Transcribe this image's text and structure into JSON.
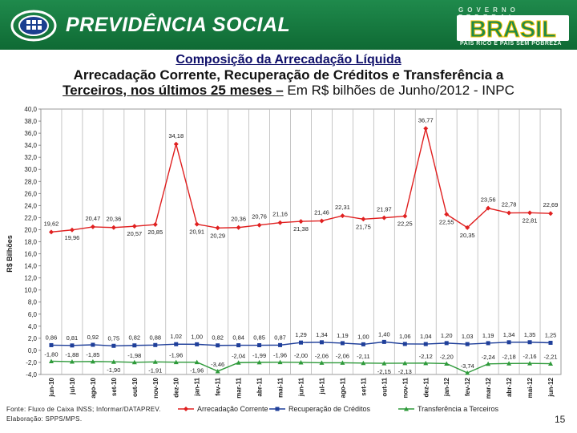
{
  "header": {
    "brand_title": "PREVIDÊNCIA SOCIAL",
    "gov_label": "GOVERNO FEDERAL",
    "country": "BRASIL",
    "slogan": "PAÍS RICO É PAÍS SEM POBREZA",
    "colors": {
      "green": "#1f8a4c",
      "yellow": "#f5c400",
      "blue": "#1a3f8f"
    }
  },
  "title": {
    "line1": "Composição da Arrecadação Líquida",
    "line2": "Arrecadação Corrente, Recuperação de Créditos e Transferência a",
    "line3_bold": "Terceiros, nos últimos 25 meses –",
    "line3_rest": " Em R$ bilhões de Junho/2012 - INPC"
  },
  "chart_data": {
    "type": "line",
    "ylabel": "R$ Bilhões",
    "xlabel": "",
    "ylim": [
      -4.0,
      40.0
    ],
    "yticks": [
      "40,0",
      "38,0",
      "36,0",
      "34,0",
      "32,0",
      "30,0",
      "28,0",
      "26,0",
      "24,0",
      "22,0",
      "20,0",
      "18,0",
      "16,0",
      "14,0",
      "12,0",
      "10,0",
      "8,0",
      "6,0",
      "4,0",
      "2,0",
      "0,0",
      "-2,0",
      "-4,0"
    ],
    "ytick_values": [
      40,
      38,
      36,
      34,
      32,
      30,
      28,
      26,
      24,
      22,
      20,
      18,
      16,
      14,
      12,
      10,
      8,
      6,
      4,
      2,
      0,
      -2,
      -4
    ],
    "categories": [
      "jun-10",
      "jul-10",
      "ago-10",
      "set-10",
      "out-10",
      "nov-10",
      "dez-10",
      "jan-11",
      "fev-11",
      "mar-11",
      "abr-11",
      "mai-11",
      "jun-11",
      "jul-11",
      "ago-11",
      "set-11",
      "out-11",
      "nov-11",
      "dez-11",
      "jan-12",
      "fev-12",
      "mar-12",
      "abr-12",
      "mai-12",
      "jun-12"
    ],
    "series": [
      {
        "name": "Arrecadação Corrente",
        "color": "#e02020",
        "marker": "diamond",
        "values": [
          19.62,
          19.96,
          20.47,
          20.36,
          20.57,
          20.85,
          34.18,
          20.91,
          20.29,
          20.36,
          20.76,
          21.16,
          21.38,
          21.46,
          22.31,
          21.75,
          21.97,
          22.25,
          36.77,
          22.55,
          20.35,
          23.56,
          22.78,
          22.81,
          22.69
        ],
        "labels": [
          "19,62",
          "19,96",
          "20,47",
          "20,36",
          "20,57",
          "20,85",
          "34,18",
          "20,91",
          "20,29",
          "20,36",
          "20,76",
          "21,16",
          "21,38",
          "21,46",
          "22,31",
          "21,75",
          "21,97",
          "22,25",
          "36,77",
          "22,55",
          "20,35",
          "23,56",
          "22,78",
          "22,81",
          "22,69"
        ]
      },
      {
        "name": "Recuperação de Créditos",
        "color": "#1f3f9a",
        "marker": "square",
        "values": [
          0.86,
          0.81,
          0.92,
          0.75,
          0.82,
          0.88,
          1.02,
          1.0,
          0.82,
          0.84,
          0.85,
          0.87,
          1.29,
          1.34,
          1.19,
          1.0,
          1.4,
          1.06,
          1.04,
          1.2,
          1.03,
          1.19,
          1.34,
          1.35,
          1.25
        ],
        "labels": [
          "0,86",
          "0,81",
          "0,92",
          "0,75",
          "0,82",
          "0,88",
          "1,02",
          "1,00",
          "0,82",
          "0,84",
          "0,85",
          "0,87",
          "1,29",
          "1,34",
          "1,19",
          "1,00",
          "1,40",
          "1,06",
          "1,04",
          "1,20",
          "1,03",
          "1,19",
          "1,34",
          "1,35",
          "1,25"
        ]
      },
      {
        "name": "Transferência a Terceiros",
        "color": "#2e9a3a",
        "marker": "triangle",
        "values": [
          -1.8,
          -1.88,
          -1.85,
          -1.9,
          -1.98,
          -1.91,
          -1.96,
          -1.96,
          -3.46,
          -2.04,
          -1.99,
          -1.96,
          -2.0,
          -2.06,
          -2.06,
          -2.11,
          -2.15,
          -2.13,
          -2.12,
          -2.2,
          -3.74,
          -2.24,
          -2.18,
          -2.16,
          -2.21
        ],
        "labels": [
          "-1,80",
          "-1,88",
          "-1,85",
          "-1,90",
          "-1,98",
          "-1,91",
          "-1,96",
          "-1,96",
          "-3,46",
          "-2,04",
          "-1,99",
          "-1,96",
          "-2,00",
          "-2,06",
          "-2,06",
          "-2,11",
          "-2,15",
          "-2,13",
          "-2,12",
          "-2,20",
          "-3,74",
          "-2,24",
          "-2,18",
          "-2,16",
          "-2,21"
        ]
      }
    ],
    "legend_position": "bottom-center",
    "grid": true
  },
  "footer": {
    "source": "Fonte: Fluxo de Caixa INSS; Informar/DATAPREV.",
    "prepared": "Elaboração: SPPS/MPS.",
    "page_number": "15"
  }
}
